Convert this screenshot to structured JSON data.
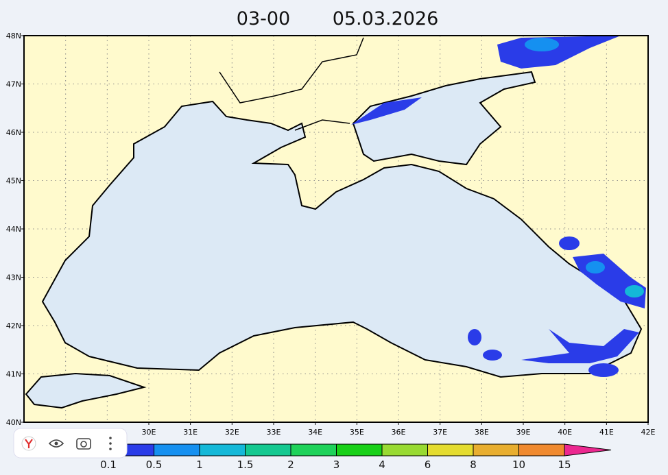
{
  "header": {
    "time": "03-00",
    "date": "05.03.2026"
  },
  "map": {
    "lat_labels": [
      "48N",
      "47N",
      "46N",
      "45N",
      "44N",
      "43N",
      "42N",
      "41N",
      "40N"
    ],
    "lon_labels": [
      "30E",
      "31E",
      "32E",
      "33E",
      "34E",
      "35E",
      "36E",
      "37E",
      "38E",
      "39E",
      "40E",
      "41E",
      "42E"
    ]
  },
  "legend": {
    "labels": [
      "0.1",
      "0.5",
      "1",
      "1.5",
      "2",
      "3",
      "4",
      "6",
      "8",
      "10",
      "15"
    ],
    "colors": [
      "#2a3ce8",
      "#1590f0",
      "#14b8d8",
      "#14c890",
      "#1ed25a",
      "#18d018",
      "#98da32",
      "#e4dc30",
      "#e8ae30",
      "#f08a30",
      "#f04848",
      "#ec2890"
    ]
  }
}
